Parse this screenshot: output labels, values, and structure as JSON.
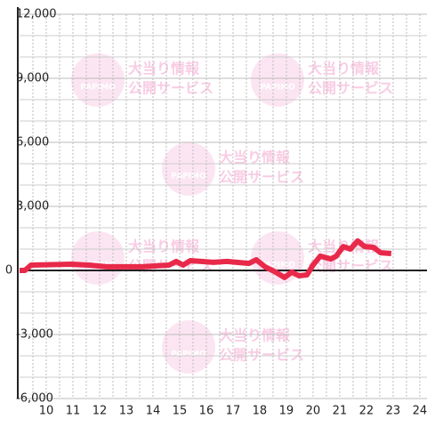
{
  "chart_data": {
    "type": "line",
    "watermark": {
      "line1": "大当り情報",
      "line2": "公開サービス",
      "logo": "PAPIMO"
    },
    "x": [
      9,
      9.2,
      9.43,
      10.93,
      11.6,
      12.27,
      13.6,
      14.6,
      14.87,
      15.13,
      15.4,
      16.27,
      16.77,
      17.6,
      17.87,
      18.2,
      18.6,
      18.93,
      19.2,
      19.47,
      19.77,
      20.0,
      20.27,
      20.67,
      20.87,
      21.13,
      21.4,
      21.67,
      21.93,
      22.27,
      22.53,
      22.93
    ],
    "series": [
      {
        "color": "#e8294a",
        "values": [
          0,
          0,
          250,
          290,
          250,
          170,
          170,
          250,
          420,
          250,
          460,
          380,
          420,
          330,
          500,
          170,
          -80,
          -330,
          -80,
          -250,
          -210,
          250,
          670,
          540,
          670,
          1120,
          1000,
          1380,
          1120,
          1080,
          830,
          790
        ]
      }
    ],
    "xlim": [
      9,
      24.27
    ],
    "ylim": [
      -6000,
      12000
    ],
    "xticks": [
      10,
      11,
      12,
      13,
      14,
      15,
      16,
      17,
      18,
      19,
      20,
      21,
      22,
      23,
      24
    ],
    "yticks": [
      {
        "value": 12000,
        "label": "12,000"
      },
      {
        "value": 9000,
        "label": "9,000"
      },
      {
        "value": 6000,
        "label": "6,000"
      },
      {
        "value": 3000,
        "label": "3,000"
      },
      0,
      {
        "value": -3000,
        "label": "-3,000"
      },
      {
        "value": -6000,
        "label": "-6,000"
      }
    ],
    "ygrid": [
      -5000,
      -4000,
      -2000,
      -1000,
      1000,
      2000,
      4000,
      5000,
      7000,
      8000,
      10000,
      11000
    ],
    "xgrid": [
      9.5,
      10,
      10.5,
      11,
      11.5,
      12,
      12.5,
      13,
      13.5,
      14,
      14.5,
      15,
      15.5,
      16,
      16.5,
      17,
      17.5,
      18,
      18.5,
      19,
      19.5,
      20,
      20.5,
      21,
      21.5,
      22,
      22.5,
      23,
      23.5,
      24
    ]
  }
}
